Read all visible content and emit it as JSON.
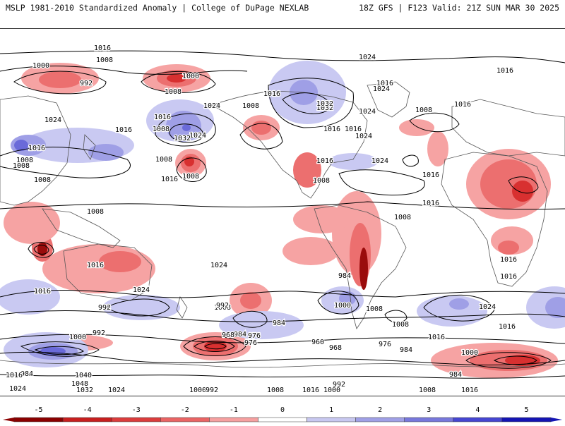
{
  "header": {
    "title": "MSLP 1981-2010 Standardized Anomaly | College of DuPage NEXLAB",
    "run_info": "18Z GFS | F123 Valid: 21Z SUN MAR 30 2025"
  },
  "colorbar": {
    "ticks": [
      "-5",
      "-4",
      "-3",
      "-2",
      "-1",
      "0",
      "1",
      "2",
      "3",
      "4",
      "5"
    ],
    "colors": [
      "#8b0000",
      "#c81e1e",
      "#dc3c3c",
      "#ea6464",
      "#f6a0a0",
      "#ffffff",
      "#c8c8f0",
      "#a0a0e6",
      "#7878dc",
      "#4646d2",
      "#1414b4"
    ]
  },
  "map": {
    "colors": {
      "neg_weak": "#f6a3a3",
      "neg_mod": "#ec6f6f",
      "neg_strong": "#d83030",
      "neg_extreme": "#9a0c0c",
      "pos_weak": "#c9c9f2",
      "pos_mod": "#9f9fe6",
      "pos_strong": "#6a6ad9",
      "pos_extreme": "#2a2ac2",
      "coast": "#555555",
      "contour": "#000000"
    },
    "isobar_labels": [
      "1016",
      "1008",
      "1000",
      "992",
      "1008",
      "1000",
      "1016",
      "1024",
      "1024",
      "1016",
      "1016",
      "1016",
      "1008",
      "1032",
      "1024",
      "1016",
      "1024",
      "1032",
      "1024",
      "1016",
      "1016",
      "1008",
      "1008",
      "1008",
      "1016",
      "1008",
      "1008",
      "1008",
      "1016",
      "1008",
      "1008",
      "1016",
      "1024",
      "1016",
      "1008",
      "1016",
      "1024",
      "1016",
      "1024",
      "1008",
      "1016",
      "1000",
      "992",
      "1008",
      "1016",
      "1008",
      "1008",
      "984",
      "992",
      "984",
      "984",
      "976",
      "968",
      "960",
      "984",
      "976",
      "968",
      "976",
      "984",
      "992",
      "1000",
      "1016",
      "1040",
      "1048",
      "1024",
      "1032",
      "1024",
      "1000",
      "992",
      "1008",
      "1016",
      "1000",
      "1008",
      "1016",
      "1016",
      "992",
      "1016",
      "984",
      "1024",
      "1016",
      "1000",
      "1032",
      "1024",
      "1024",
      "1016"
    ]
  }
}
